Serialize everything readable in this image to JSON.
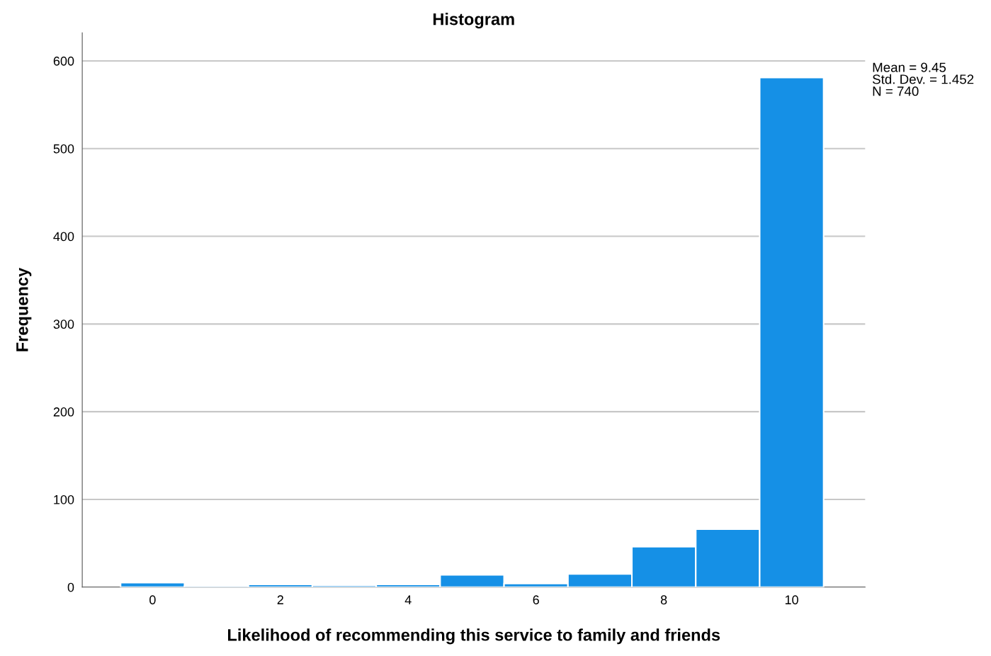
{
  "chart_data": {
    "type": "histogram",
    "title": "Histogram",
    "xlabel": "Likelihood of recommending this service to family and friends",
    "ylabel": "Frequency",
    "bins": [
      -0.5,
      0.5,
      1.5,
      2.5,
      3.5,
      4.5,
      5.5,
      6.5,
      7.5,
      8.5,
      9.5,
      10.5
    ],
    "values": [
      5,
      1,
      3,
      2,
      3,
      14,
      4,
      15,
      46,
      66,
      581
    ],
    "color": "#1590e6",
    "xlim": [
      -1.1,
      11.15
    ],
    "xticks": [
      0,
      2,
      4,
      6,
      8,
      10
    ],
    "ylim": [
      0,
      632
    ],
    "yticks": [
      0,
      100,
      200,
      300,
      400,
      500,
      600
    ],
    "grid": "y",
    "annotations": [
      "Mean = 9.45\nStd. Dev. = 1.452\nN = 740"
    ]
  }
}
